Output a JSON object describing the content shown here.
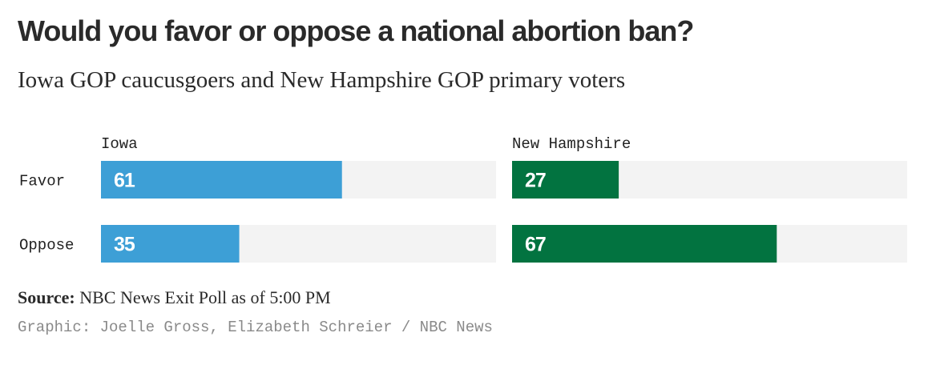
{
  "title": "Would you favor or oppose a national abortion ban?",
  "subtitle": "Iowa GOP caucusgoers and New Hampshire GOP primary voters",
  "source_label": "Source:",
  "source_text": "NBC News Exit Poll as of 5:00 PM",
  "credit": "Graphic: Joelle Gross, Elizabeth Schreier / NBC News",
  "chart_data": {
    "type": "bar",
    "orientation": "horizontal",
    "categories": [
      "Favor",
      "Oppose"
    ],
    "xlim": [
      0,
      100
    ],
    "series": [
      {
        "name": "Iowa",
        "values": [
          61,
          35
        ],
        "color": "#3d9fd6",
        "track_color": "#f3f3f3"
      },
      {
        "name": "New Hampshire",
        "values": [
          27,
          67
        ],
        "color": "#027340",
        "track_color": "#f3f3f3"
      }
    ]
  }
}
